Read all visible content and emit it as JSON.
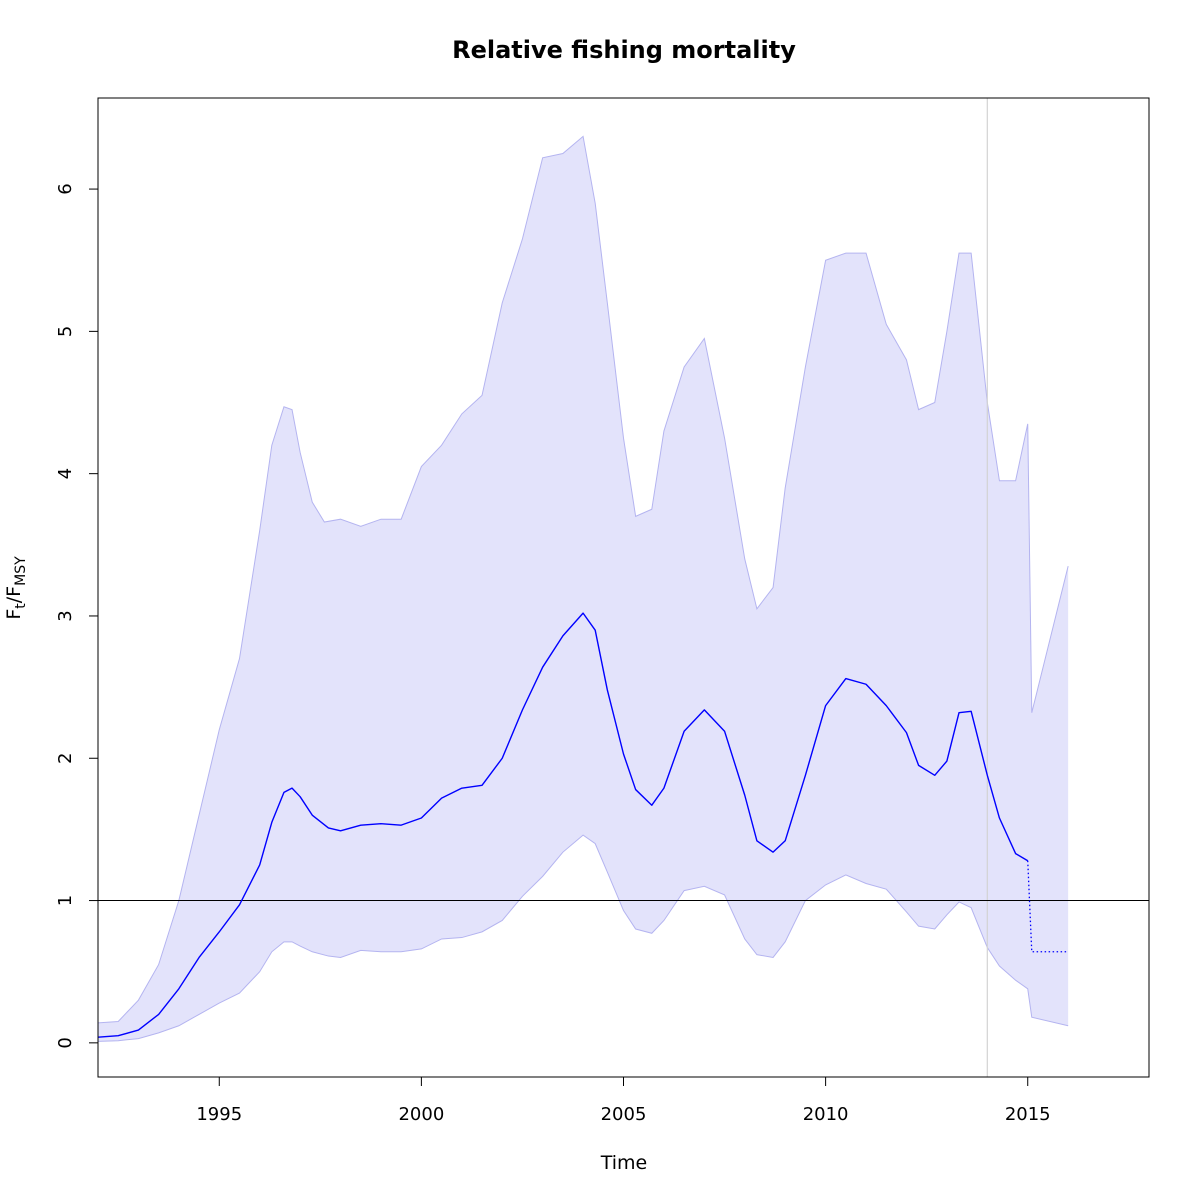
{
  "chart_data": {
    "type": "line",
    "title": "Relative fishing mortality",
    "xlabel": "Time",
    "ylabel": {
      "main": "F",
      "sub1": "t",
      "slash": "/F",
      "sub2": "MSY"
    },
    "xlim": [
      1992,
      2018
    ],
    "ylim": [
      -0.24,
      6.64
    ],
    "x_ticks": [
      1995,
      2000,
      2005,
      2010,
      2015
    ],
    "y_ticks": [
      0,
      1,
      2,
      3,
      4,
      5,
      6
    ],
    "reference_line_y": 1,
    "reference_line_x": 2014,
    "colors": {
      "median": "#0000ff",
      "band_fill": "#e3e3fb",
      "band_edge": "#b4b4f0",
      "hline": "#000000",
      "vline": "#d3d3d3"
    },
    "series": [
      {
        "values": [
          [
            1992.0,
            0.04
          ],
          [
            1992.5,
            0.05
          ],
          [
            1993.0,
            0.09
          ],
          [
            1993.5,
            0.2
          ],
          [
            1994.0,
            0.38
          ],
          [
            1994.5,
            0.6
          ],
          [
            1995.0,
            0.78
          ],
          [
            1995.5,
            0.97
          ],
          [
            1996.0,
            1.25
          ],
          [
            1996.3,
            1.55
          ],
          [
            1996.6,
            1.76
          ],
          [
            1996.8,
            1.79
          ],
          [
            1997.0,
            1.73
          ],
          [
            1997.3,
            1.6
          ],
          [
            1997.7,
            1.51
          ],
          [
            1998.0,
            1.49
          ],
          [
            1998.5,
            1.53
          ],
          [
            1999.0,
            1.54
          ],
          [
            1999.5,
            1.53
          ],
          [
            2000.0,
            1.58
          ],
          [
            2000.5,
            1.72
          ],
          [
            2001.0,
            1.79
          ],
          [
            2001.5,
            1.81
          ],
          [
            2002.0,
            2.0
          ],
          [
            2002.5,
            2.34
          ],
          [
            2003.0,
            2.64
          ],
          [
            2003.5,
            2.86
          ],
          [
            2004.0,
            3.02
          ],
          [
            2004.3,
            2.9
          ],
          [
            2004.6,
            2.48
          ],
          [
            2005.0,
            2.03
          ],
          [
            2005.3,
            1.78
          ],
          [
            2005.7,
            1.67
          ],
          [
            2006.0,
            1.79
          ],
          [
            2006.5,
            2.19
          ],
          [
            2007.0,
            2.34
          ],
          [
            2007.5,
            2.19
          ],
          [
            2008.0,
            1.74
          ],
          [
            2008.3,
            1.42
          ],
          [
            2008.7,
            1.34
          ],
          [
            2009.0,
            1.42
          ],
          [
            2009.5,
            1.88
          ],
          [
            2010.0,
            2.37
          ],
          [
            2010.5,
            2.56
          ],
          [
            2011.0,
            2.52
          ],
          [
            2011.5,
            2.37
          ],
          [
            2012.0,
            2.18
          ],
          [
            2012.3,
            1.95
          ],
          [
            2012.7,
            1.88
          ],
          [
            2013.0,
            1.98
          ],
          [
            2013.3,
            2.32
          ],
          [
            2013.6,
            2.33
          ],
          [
            2014.0,
            1.88
          ],
          [
            2014.3,
            1.58
          ],
          [
            2014.7,
            1.33
          ],
          [
            2015.0,
            1.28
          ]
        ]
      },
      {
        "line_style": "dotted",
        "values": [
          [
            2015.0,
            1.28
          ],
          [
            2015.1,
            0.64
          ],
          [
            2016.0,
            0.64
          ]
        ]
      }
    ],
    "interval": {
      "upper": [
        [
          1992.0,
          0.14
        ],
        [
          1992.5,
          0.15
        ],
        [
          1993.0,
          0.3
        ],
        [
          1993.5,
          0.55
        ],
        [
          1994.0,
          1.0
        ],
        [
          1994.5,
          1.6
        ],
        [
          1995.0,
          2.2
        ],
        [
          1995.5,
          2.7
        ],
        [
          1996.0,
          3.6
        ],
        [
          1996.3,
          4.2
        ],
        [
          1996.6,
          4.47
        ],
        [
          1996.8,
          4.45
        ],
        [
          1997.0,
          4.15
        ],
        [
          1997.3,
          3.8
        ],
        [
          1997.6,
          3.66
        ],
        [
          1998.0,
          3.68
        ],
        [
          1998.5,
          3.63
        ],
        [
          1999.0,
          3.68
        ],
        [
          1999.5,
          3.68
        ],
        [
          2000.0,
          4.05
        ],
        [
          2000.5,
          4.2
        ],
        [
          2001.0,
          4.42
        ],
        [
          2001.5,
          4.55
        ],
        [
          2002.0,
          5.2
        ],
        [
          2002.5,
          5.65
        ],
        [
          2003.0,
          6.22
        ],
        [
          2003.5,
          6.25
        ],
        [
          2004.0,
          6.37
        ],
        [
          2004.3,
          5.9
        ],
        [
          2004.6,
          5.2
        ],
        [
          2005.0,
          4.25
        ],
        [
          2005.3,
          3.7
        ],
        [
          2005.7,
          3.75
        ],
        [
          2006.0,
          4.3
        ],
        [
          2006.5,
          4.75
        ],
        [
          2007.0,
          4.95
        ],
        [
          2007.5,
          4.25
        ],
        [
          2008.0,
          3.4
        ],
        [
          2008.3,
          3.05
        ],
        [
          2008.7,
          3.2
        ],
        [
          2009.0,
          3.9
        ],
        [
          2009.5,
          4.75
        ],
        [
          2010.0,
          5.5
        ],
        [
          2010.5,
          5.55
        ],
        [
          2011.0,
          5.55
        ],
        [
          2011.5,
          5.05
        ],
        [
          2012.0,
          4.8
        ],
        [
          2012.3,
          4.45
        ],
        [
          2012.7,
          4.5
        ],
        [
          2013.0,
          5.0
        ],
        [
          2013.3,
          5.55
        ],
        [
          2013.6,
          5.55
        ],
        [
          2014.0,
          4.5
        ],
        [
          2014.3,
          3.95
        ],
        [
          2014.7,
          3.95
        ],
        [
          2015.0,
          4.35
        ],
        [
          2015.1,
          2.32
        ],
        [
          2016.0,
          3.35
        ]
      ],
      "lower": [
        [
          1992.0,
          0.01
        ],
        [
          1992.5,
          0.015
        ],
        [
          1993.0,
          0.03
        ],
        [
          1993.5,
          0.07
        ],
        [
          1994.0,
          0.12
        ],
        [
          1994.5,
          0.2
        ],
        [
          1995.0,
          0.28
        ],
        [
          1995.5,
          0.35
        ],
        [
          1996.0,
          0.5
        ],
        [
          1996.3,
          0.64
        ],
        [
          1996.6,
          0.71
        ],
        [
          1996.8,
          0.71
        ],
        [
          1997.0,
          0.68
        ],
        [
          1997.3,
          0.64
        ],
        [
          1997.7,
          0.61
        ],
        [
          1998.0,
          0.6
        ],
        [
          1998.5,
          0.65
        ],
        [
          1999.0,
          0.64
        ],
        [
          1999.5,
          0.64
        ],
        [
          2000.0,
          0.66
        ],
        [
          2000.5,
          0.73
        ],
        [
          2001.0,
          0.74
        ],
        [
          2001.5,
          0.78
        ],
        [
          2002.0,
          0.86
        ],
        [
          2002.5,
          1.03
        ],
        [
          2003.0,
          1.17
        ],
        [
          2003.5,
          1.34
        ],
        [
          2004.0,
          1.46
        ],
        [
          2004.3,
          1.4
        ],
        [
          2004.6,
          1.2
        ],
        [
          2005.0,
          0.93
        ],
        [
          2005.3,
          0.8
        ],
        [
          2005.7,
          0.77
        ],
        [
          2006.0,
          0.86
        ],
        [
          2006.5,
          1.07
        ],
        [
          2007.0,
          1.1
        ],
        [
          2007.5,
          1.04
        ],
        [
          2008.0,
          0.73
        ],
        [
          2008.3,
          0.62
        ],
        [
          2008.7,
          0.6
        ],
        [
          2009.0,
          0.71
        ],
        [
          2009.5,
          1.0
        ],
        [
          2010.0,
          1.11
        ],
        [
          2010.5,
          1.18
        ],
        [
          2011.0,
          1.12
        ],
        [
          2011.5,
          1.08
        ],
        [
          2012.0,
          0.92
        ],
        [
          2012.3,
          0.82
        ],
        [
          2012.7,
          0.8
        ],
        [
          2013.0,
          0.9
        ],
        [
          2013.3,
          0.99
        ],
        [
          2013.6,
          0.95
        ],
        [
          2014.0,
          0.67
        ],
        [
          2014.3,
          0.54
        ],
        [
          2014.7,
          0.44
        ],
        [
          2015.0,
          0.38
        ],
        [
          2015.1,
          0.18
        ],
        [
          2016.0,
          0.12
        ]
      ]
    }
  }
}
